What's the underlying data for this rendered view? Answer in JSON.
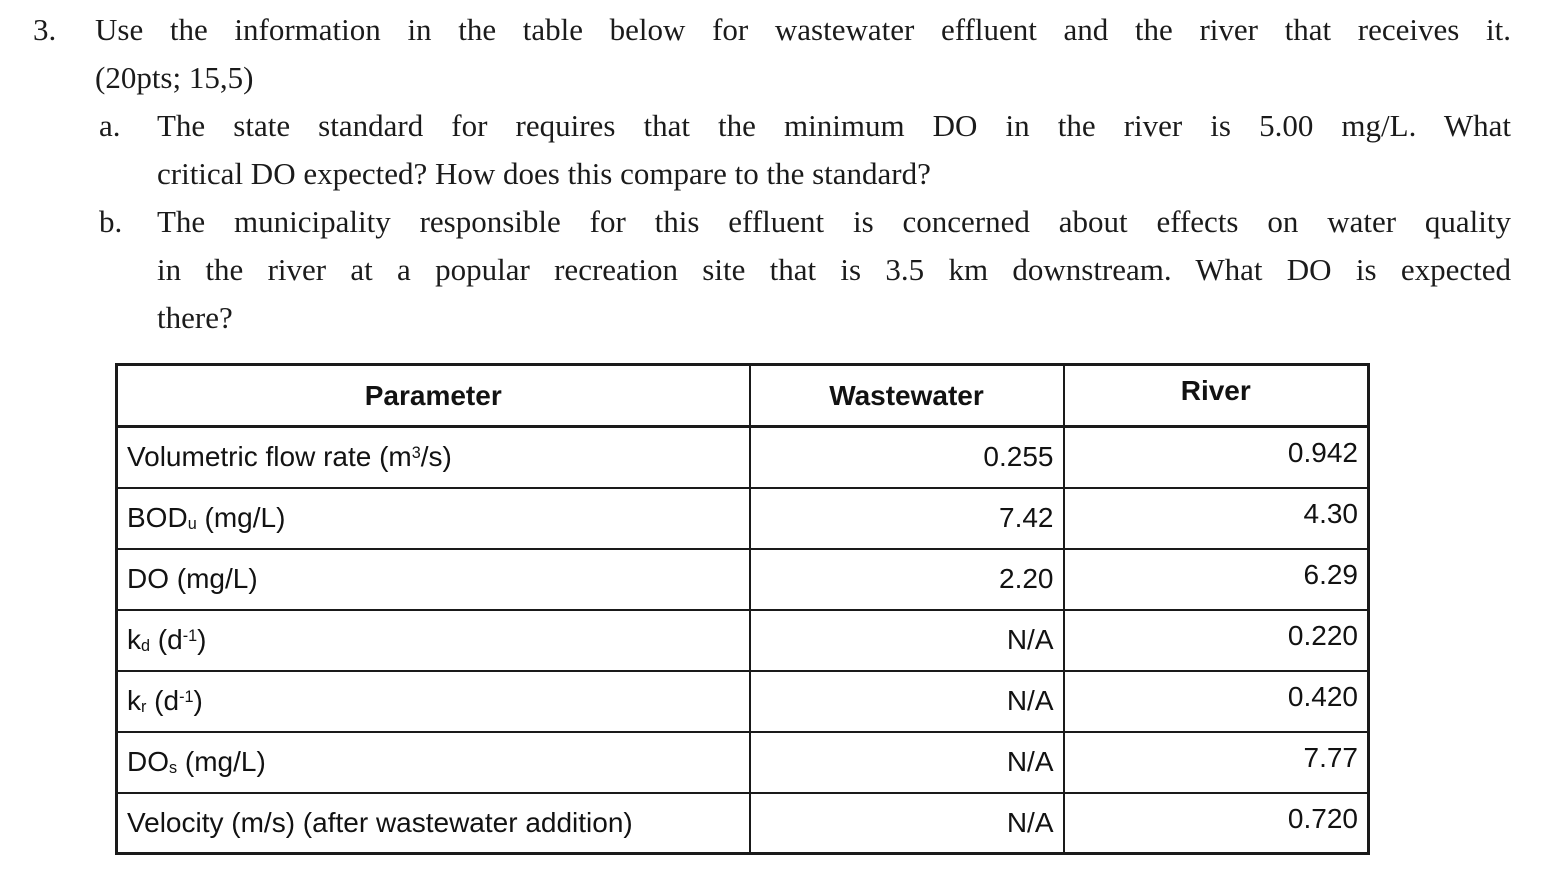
{
  "problem": {
    "number": "3.",
    "intro_lines": [
      "Use the information in the table below for wastewater effluent and the river that receives it.",
      "(20pts; 15,5)"
    ],
    "items": [
      {
        "marker": "a.",
        "lines": [
          "The state standard for requires that the minimum DO in the river is 5.00 mg/L. What",
          "critical DO expected? How does this compare to the standard?"
        ]
      },
      {
        "marker": "b.",
        "lines": [
          "The municipality responsible for this effluent is concerned about effects on water quality",
          "in the river at a popular recreation site that is 3.5 km downstream. What DO is expected",
          "there?"
        ]
      }
    ]
  },
  "table": {
    "headers": {
      "parameter": "Parameter",
      "wastewater": "Wastewater",
      "river": "River"
    },
    "rows": [
      {
        "param": [
          [
            "t",
            "Volumetric flow rate (m"
          ],
          [
            "sup",
            "3"
          ],
          [
            "t",
            "/s)"
          ]
        ],
        "param_text": "Volumetric flow rate (m3/s)",
        "wastewater": "0.255",
        "river": "0.942"
      },
      {
        "param": [
          [
            "t",
            "BOD"
          ],
          [
            "sub",
            "u"
          ],
          [
            "t",
            " (mg/L)"
          ]
        ],
        "param_text": "BODu (mg/L)",
        "wastewater": "7.42",
        "river": "4.30"
      },
      {
        "param": [
          [
            "t",
            "DO (mg/L)"
          ]
        ],
        "param_text": "DO (mg/L)",
        "wastewater": "2.20",
        "river": "6.29"
      },
      {
        "param": [
          [
            "t",
            "k"
          ],
          [
            "sub",
            "d"
          ],
          [
            "t",
            " (d"
          ],
          [
            "sup",
            "-1"
          ],
          [
            "t",
            ")"
          ]
        ],
        "param_text": "kd (d-1)",
        "wastewater": "N/A",
        "river": "0.220"
      },
      {
        "param": [
          [
            "t",
            "k"
          ],
          [
            "sub",
            "r"
          ],
          [
            "t",
            " (d"
          ],
          [
            "sup",
            "-1"
          ],
          [
            "t",
            ")"
          ]
        ],
        "param_text": "kr (d-1)",
        "wastewater": "N/A",
        "river": "0.420"
      },
      {
        "param": [
          [
            "t",
            "DO"
          ],
          [
            "sub",
            "s"
          ],
          [
            "t",
            " (mg/L)"
          ]
        ],
        "param_text": "DOs (mg/L)",
        "wastewater": "N/A",
        "river": "7.77"
      },
      {
        "param": [
          [
            "t",
            "Velocity (m/s) (after wastewater addition)"
          ]
        ],
        "param_text": "Velocity (m/s) (after wastewater addition)",
        "wastewater": "N/A",
        "river": "0.720"
      }
    ]
  },
  "colors": {
    "text": "#1b1b1b",
    "border": "#1a1a1a",
    "background": "#ffffff"
  }
}
